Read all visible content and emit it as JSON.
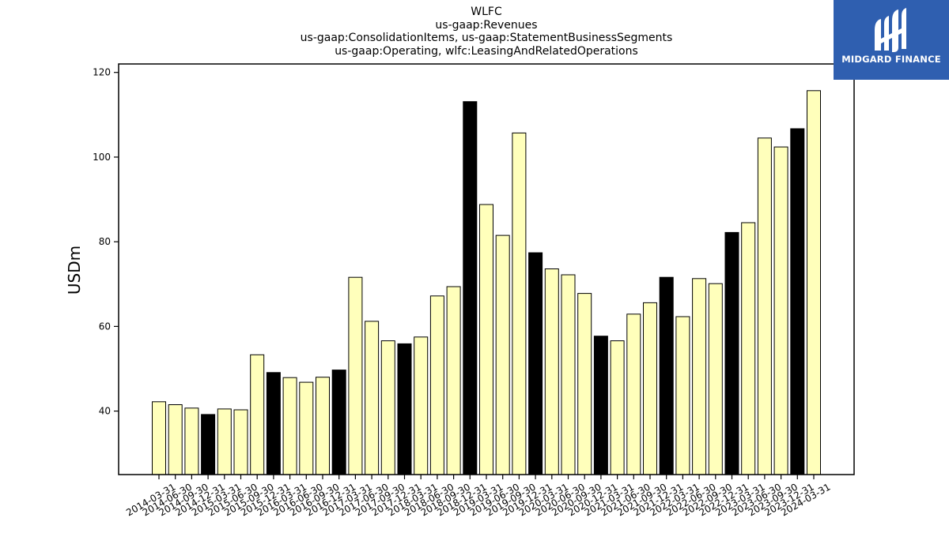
{
  "title_lines": [
    "WLFC",
    "us-gaap:Revenues",
    "us-gaap:ConsolidationItems, us-gaap:StatementBusinessSegments",
    "us-gaap:Operating, wlfc:LeasingAndRelatedOperations"
  ],
  "logo": {
    "text": "MIDGARD FINANCE",
    "background": "#2f5fb0",
    "icon": "midgard-m-icon"
  },
  "colors": {
    "quarter_bar": "#ffffbb",
    "year_end_bar": "#000000",
    "edge": "#000000"
  },
  "chart_data": {
    "type": "bar",
    "ylabel": "USDm",
    "xlabel": "",
    "ylim": [
      25,
      122
    ],
    "yticks": [
      40,
      60,
      80,
      100,
      120
    ],
    "grid": false,
    "categories": [
      "2014-03-31",
      "2014-06-30",
      "2014-09-30",
      "2014-12-31",
      "2015-03-31",
      "2015-06-30",
      "2015-09-30",
      "2015-12-31",
      "2016-03-31",
      "2016-06-30",
      "2016-09-30",
      "2016-12-31",
      "2017-03-31",
      "2017-06-30",
      "2017-09-30",
      "2017-12-31",
      "2018-03-31",
      "2018-06-30",
      "2018-09-30",
      "2018-12-31",
      "2019-03-31",
      "2019-06-30",
      "2019-09-30",
      "2019-12-31",
      "2020-03-31",
      "2020-06-30",
      "2020-09-30",
      "2020-12-31",
      "2021-03-31",
      "2021-06-30",
      "2021-09-30",
      "2021-12-31",
      "2022-03-31",
      "2022-06-30",
      "2022-09-30",
      "2022-12-31",
      "2023-03-31",
      "2023-06-30",
      "2023-09-30",
      "2023-12-31",
      "2024-03-31"
    ],
    "values": [
      42.2,
      41.5,
      40.7,
      39.2,
      40.5,
      40.3,
      53.3,
      49.1,
      47.9,
      46.8,
      48.0,
      49.7,
      71.6,
      61.2,
      56.6,
      55.9,
      57.5,
      67.2,
      69.4,
      113.1,
      88.8,
      81.5,
      105.7,
      77.4,
      73.6,
      72.2,
      67.8,
      57.7,
      56.6,
      62.9,
      65.6,
      71.6,
      62.3,
      71.3,
      70.1,
      82.2,
      84.5,
      104.5,
      102.4,
      106.7,
      115.7
    ],
    "highlight": [
      false,
      false,
      false,
      true,
      false,
      false,
      false,
      true,
      false,
      false,
      false,
      true,
      false,
      false,
      false,
      true,
      false,
      false,
      false,
      true,
      false,
      false,
      false,
      true,
      false,
      false,
      false,
      true,
      false,
      false,
      false,
      true,
      false,
      false,
      false,
      true,
      false,
      false,
      false,
      true,
      false
    ]
  }
}
